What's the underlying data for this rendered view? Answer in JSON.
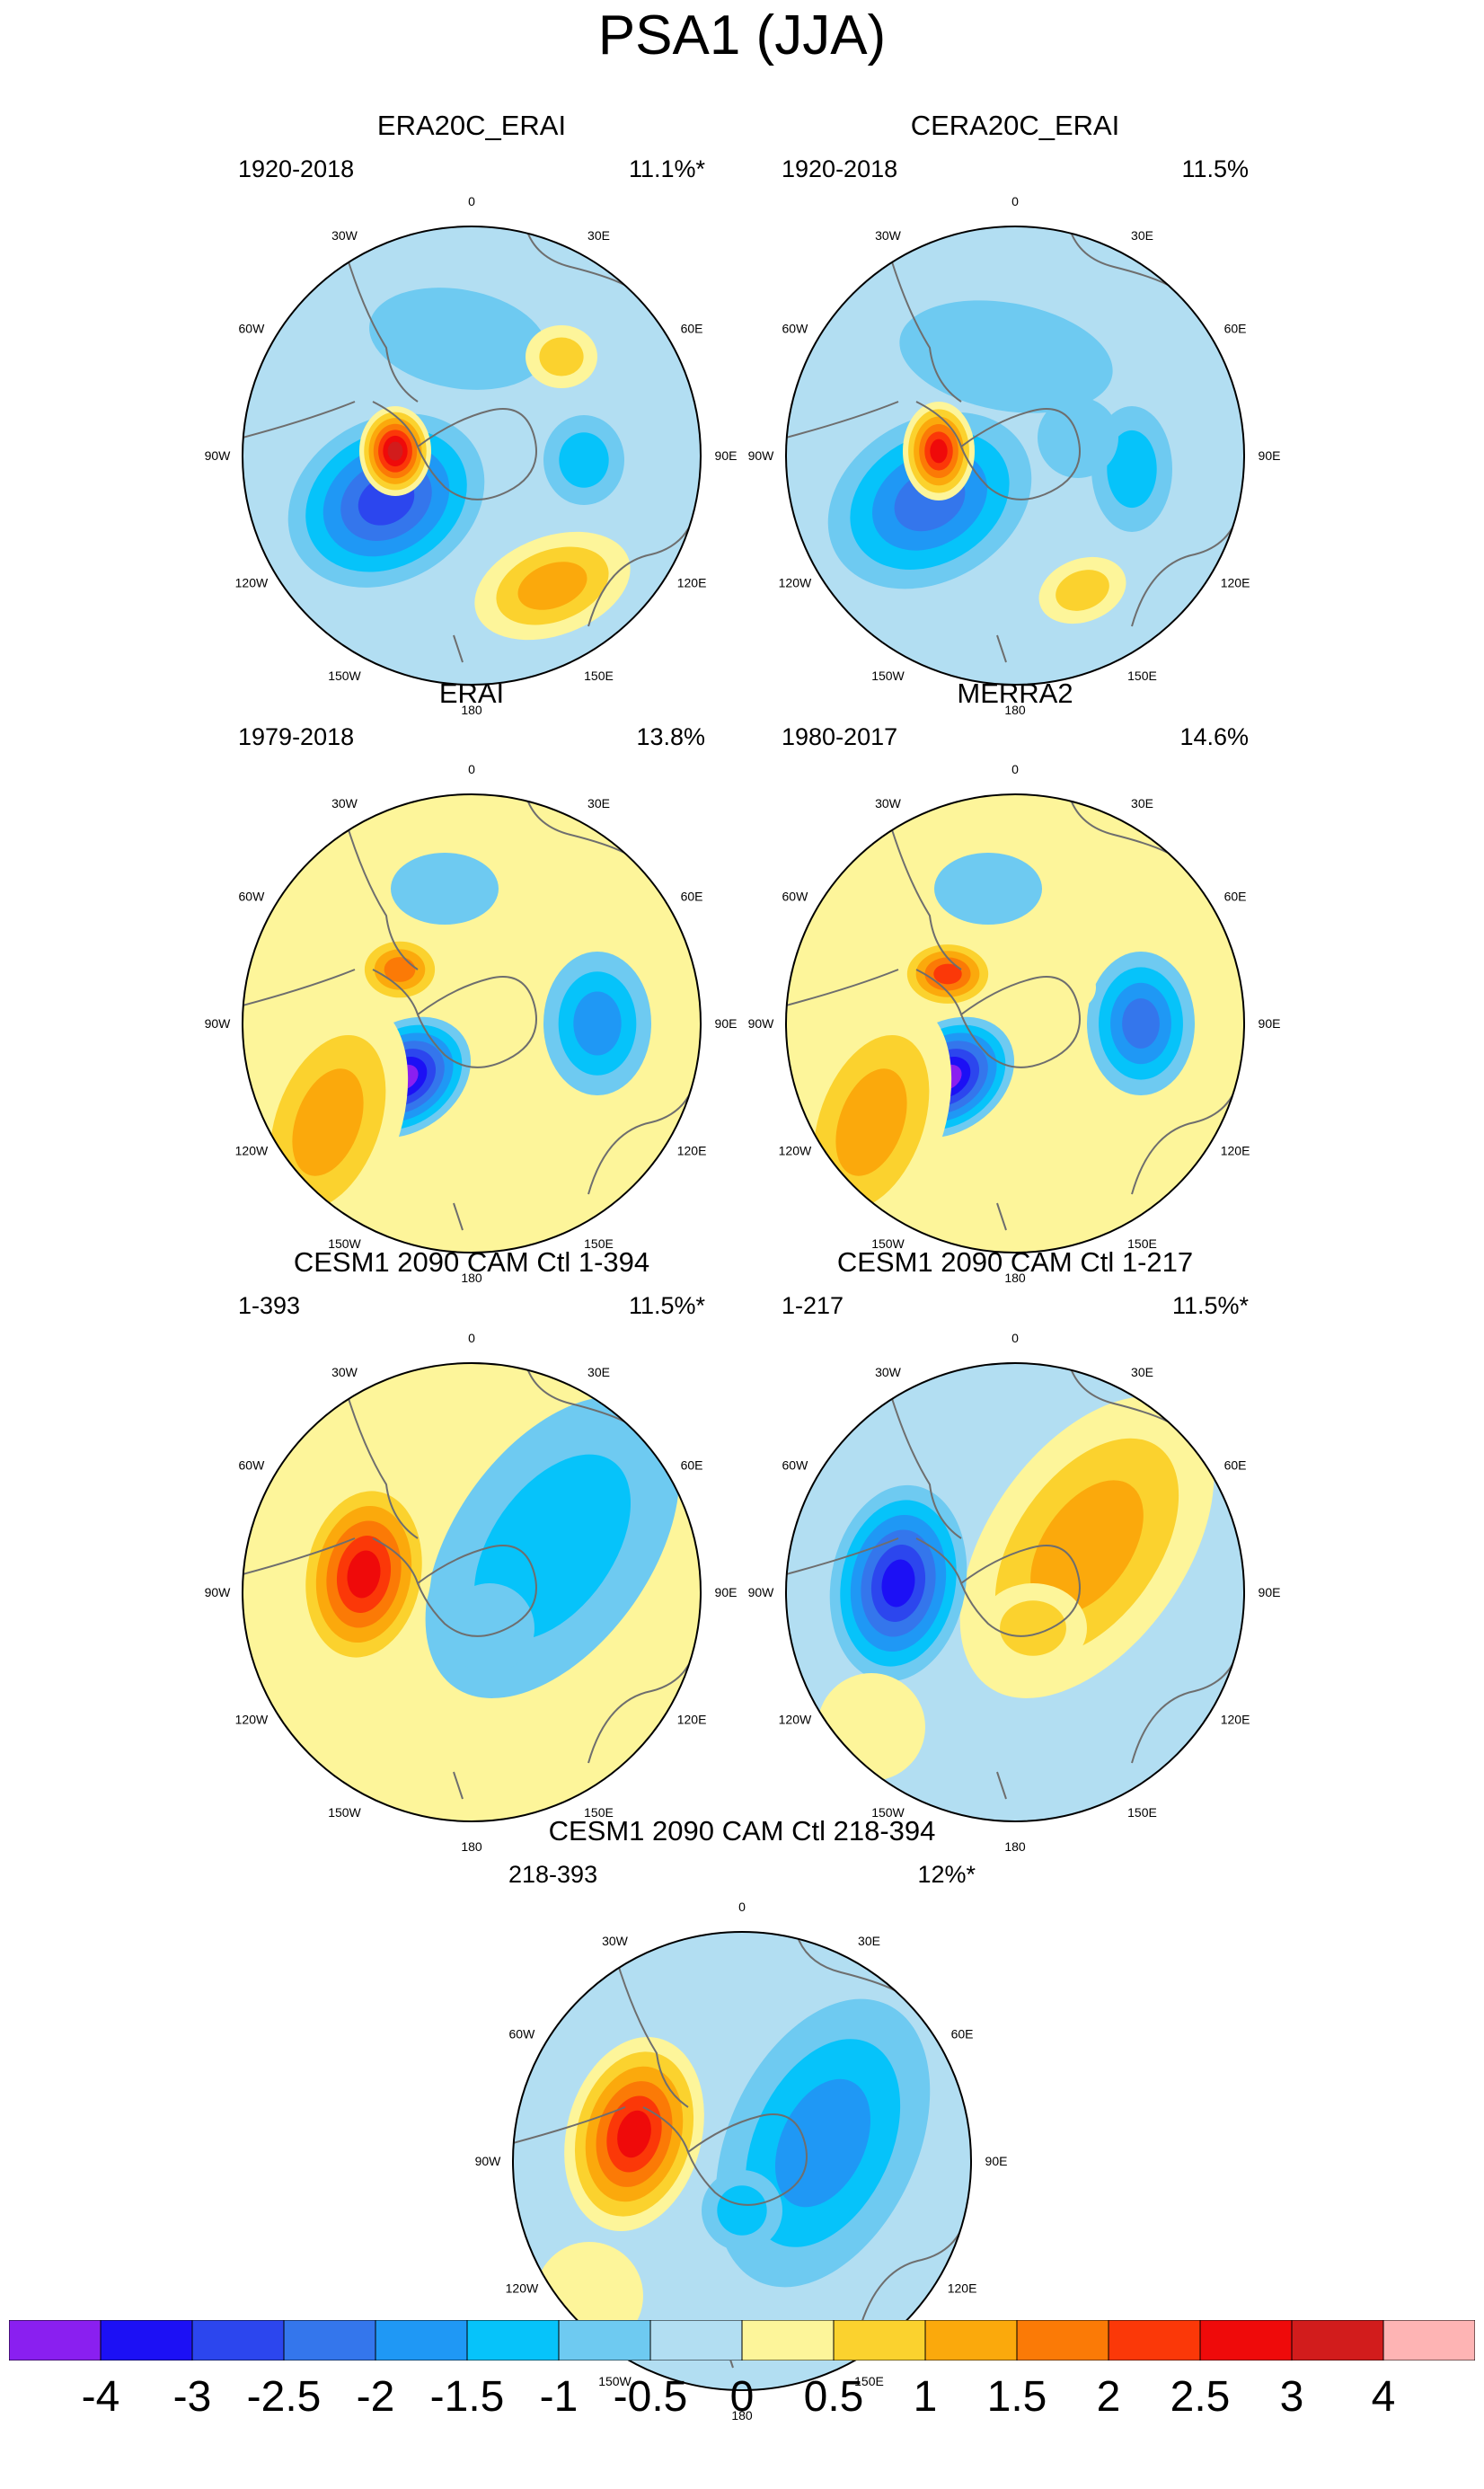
{
  "title": "PSA1 (JJA)",
  "panels": [
    {
      "title": "ERA20C_ERAI",
      "period": "1920-2018",
      "variance": "11.1%*"
    },
    {
      "title": "CERA20C_ERAI",
      "period": "1920-2018",
      "variance": "11.5%"
    },
    {
      "title": "ERAI",
      "period": "1979-2018",
      "variance": "13.8%"
    },
    {
      "title": "MERRA2",
      "period": "1980-2017",
      "variance": "14.6%"
    },
    {
      "title": "CESM1 2090 CAM Ctl 1-394",
      "period": "1-393",
      "variance": "11.5%*"
    },
    {
      "title": "CESM1 2090 CAM Ctl 1-217",
      "period": "1-217",
      "variance": "11.5%*"
    },
    {
      "title": "CESM1 2090 CAM Ctl 218-394",
      "period": "218-393",
      "variance": "12%*"
    }
  ],
  "longitude_labels": [
    "0",
    "30E",
    "60E",
    "90E",
    "120E",
    "150E",
    "180",
    "150W",
    "120W",
    "90W",
    "60W",
    "30W"
  ],
  "colorbar": {
    "labels": [
      "-4",
      "-3",
      "-2.5",
      "-2",
      "-1.5",
      "-1",
      "-0.5",
      "0",
      "0.5",
      "1",
      "1.5",
      "2",
      "2.5",
      "3",
      "4"
    ],
    "colors": [
      "#8a1ff0",
      "#1c10f5",
      "#2c46ee",
      "#3476ec",
      "#1f98f5",
      "#06c3fa",
      "#6ecaf1",
      "#b2def2",
      "#fdf59a",
      "#fbd22e",
      "#fba90c",
      "#fb7a06",
      "#fb3808",
      "#ef0a0a",
      "#d21c1c",
      "#feb4b4"
    ]
  }
}
